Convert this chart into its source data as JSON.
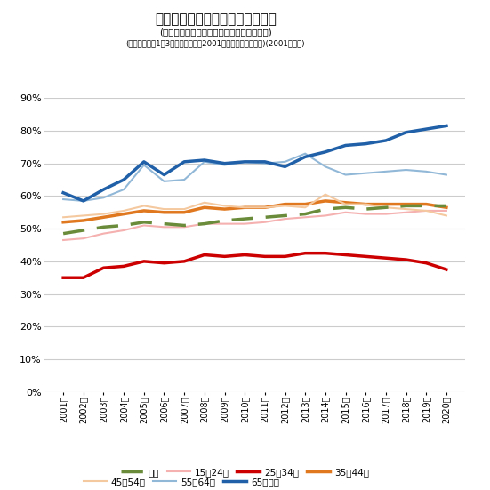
{
  "title_main": "年齢階層別非正規職員・従業者率",
  "title_sub1": "(役員を除いた雇用者数に対する比率、女性)",
  "title_sub2": "(四半期のうち1〜3月平均を取得。2001年は２月の値を取得)(2001年以降)",
  "years": [
    "2001年",
    "2002年",
    "2003年",
    "2004年",
    "2005年",
    "2006年",
    "2007年",
    "2008年",
    "2009年",
    "2010年",
    "2011年",
    "2012年",
    "2013年",
    "2014年",
    "2015年",
    "2016年",
    "2017年",
    "2018年",
    "2019年",
    "2020年"
  ],
  "series": {
    "総数": [
      48.5,
      49.5,
      50.5,
      51.0,
      52.0,
      51.5,
      51.0,
      51.5,
      52.5,
      53.0,
      53.5,
      54.0,
      54.5,
      56.0,
      56.5,
      56.0,
      56.5,
      57.0,
      57.0,
      57.0
    ],
    "15〜24歳": [
      46.5,
      47.0,
      48.5,
      49.5,
      51.0,
      50.5,
      50.5,
      51.5,
      51.5,
      51.5,
      52.0,
      53.0,
      53.5,
      54.0,
      55.0,
      54.5,
      54.5,
      55.0,
      55.5,
      55.5
    ],
    "25〜34歳": [
      35.0,
      35.0,
      38.0,
      38.5,
      40.0,
      39.5,
      40.0,
      42.0,
      41.5,
      42.0,
      41.5,
      41.5,
      42.5,
      42.5,
      42.0,
      41.5,
      41.0,
      40.5,
      39.5,
      37.5
    ],
    "35〜44歳": [
      52.0,
      52.5,
      53.5,
      54.5,
      55.5,
      55.0,
      55.0,
      56.5,
      56.0,
      56.5,
      56.5,
      57.5,
      57.5,
      58.5,
      58.0,
      57.5,
      57.5,
      57.5,
      57.5,
      56.5
    ],
    "45〜54歳": [
      53.5,
      54.0,
      54.5,
      55.5,
      57.0,
      56.0,
      56.0,
      58.0,
      57.0,
      56.5,
      56.5,
      57.0,
      56.5,
      60.5,
      57.5,
      57.5,
      56.5,
      56.0,
      55.5,
      54.0
    ],
    "55〜64歳": [
      59.0,
      58.5,
      59.5,
      62.0,
      69.5,
      64.5,
      65.0,
      70.5,
      69.5,
      70.5,
      70.0,
      70.5,
      73.0,
      69.0,
      66.5,
      67.0,
      67.5,
      68.0,
      67.5,
      66.5
    ],
    "65歳以上": [
      61.0,
      58.5,
      62.0,
      65.0,
      70.5,
      66.5,
      70.5,
      71.0,
      70.0,
      70.5,
      70.5,
      69.0,
      72.0,
      73.5,
      75.5,
      76.0,
      77.0,
      79.5,
      80.5,
      81.5
    ]
  },
  "colors": {
    "総数": "#6a8c3a",
    "15〜24歳": "#f5b0b0",
    "25〜34歳": "#cc0000",
    "35〜44歳": "#e07820",
    "45〜54歳": "#f5c9a0",
    "55〜64歳": "#92b8d8",
    "65歳以上": "#2060a8"
  },
  "linewidths": {
    "総数": 2.5,
    "15〜24歳": 1.5,
    "25〜34歳": 2.5,
    "35〜44歳": 2.5,
    "45〜54歳": 1.5,
    "55〜64歳": 1.5,
    "65歳以上": 2.5
  },
  "ylim": [
    0,
    90
  ],
  "yticks": [
    0,
    10,
    20,
    30,
    40,
    50,
    60,
    70,
    80,
    90
  ],
  "ytick_labels": [
    "0%",
    "10%",
    "20%",
    "30%",
    "40%",
    "50%",
    "60%",
    "70%",
    "80%",
    "90%"
  ],
  "background_color": "#ffffff",
  "grid_color": "#cccccc",
  "legend_order": [
    "総数",
    "15〜24歳",
    "25〜34歳",
    "35〜44歳",
    "45〜54歳",
    "55〜64歳",
    "65歳以上"
  ]
}
